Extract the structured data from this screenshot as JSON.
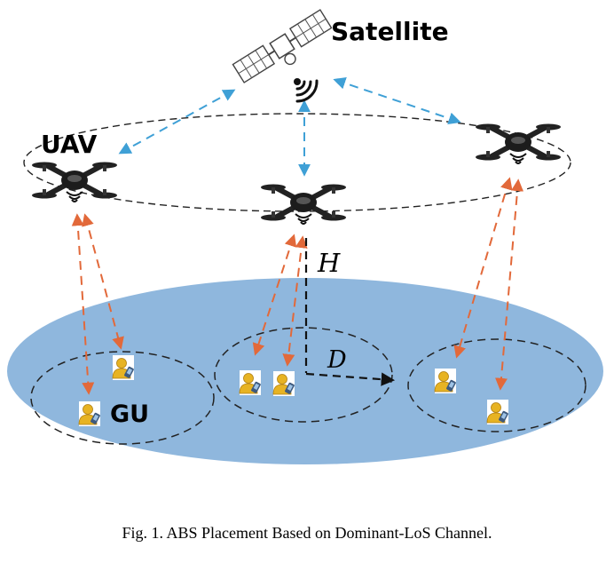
{
  "labels": {
    "satellite": "Satellite",
    "uav": "UAV",
    "gu": "GU",
    "height": "H",
    "distance": "D"
  },
  "caption": "Fig. 1.  ABS Placement Based on Dominant-LoS Channel.",
  "colors": {
    "ground": "#8fb7dd",
    "satellite_link": "#3fa0d6",
    "uav_gu_link": "#e2693a",
    "dashed_outline": "#222222"
  },
  "icons": [
    "satellite-icon",
    "drone-icon",
    "user-phone-icon"
  ]
}
